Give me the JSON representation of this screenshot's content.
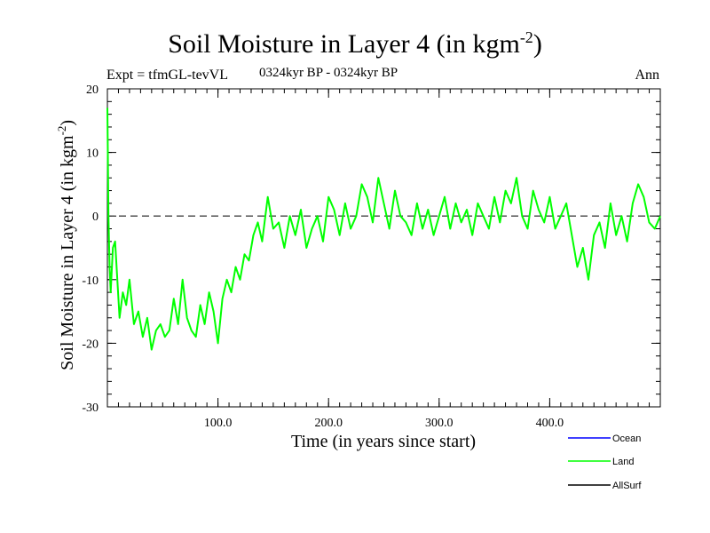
{
  "chart_data": {
    "type": "line",
    "title": "Soil Moisture in Layer 4 (in kgm",
    "title_sup": "-2",
    "title_end": ")",
    "subtitle": "0324kyr BP - 0324kyr BP",
    "expt_label": "Expt = tfmGL-tevVL",
    "season_label": "Ann",
    "xlabel": "Time (in years since start)",
    "ylabel": "Soil Moisture in Layer 4 (in kgm",
    "ylabel_sup": "-2",
    "ylabel_end": ")",
    "xlim": [
      0,
      500
    ],
    "ylim": [
      -30,
      20
    ],
    "x_ticks": [
      100,
      200,
      300,
      400
    ],
    "x_tick_labels": [
      "100.0",
      "200.0",
      "300.0",
      "400.0"
    ],
    "y_ticks": [
      -30,
      -20,
      -10,
      0,
      10,
      20
    ],
    "y_tick_labels": [
      "-30",
      "-20",
      "-10",
      "0",
      "10",
      "20"
    ],
    "zero_line": true,
    "series": [
      {
        "name": "Ocean",
        "color": "#0000ff",
        "values": []
      },
      {
        "name": "Land",
        "color": "#00ff00",
        "x": [
          0,
          1,
          2,
          3,
          5,
          7,
          9,
          11,
          14,
          17,
          20,
          24,
          28,
          32,
          36,
          40,
          44,
          48,
          52,
          56,
          60,
          64,
          68,
          72,
          76,
          80,
          84,
          88,
          92,
          96,
          100,
          104,
          108,
          112,
          116,
          120,
          124,
          128,
          132,
          136,
          140,
          145,
          150,
          155,
          160,
          165,
          170,
          175,
          180,
          185,
          190,
          195,
          200,
          205,
          210,
          215,
          220,
          225,
          230,
          235,
          240,
          245,
          250,
          255,
          260,
          265,
          270,
          275,
          280,
          285,
          290,
          295,
          300,
          305,
          310,
          315,
          320,
          325,
          330,
          335,
          340,
          345,
          350,
          355,
          360,
          365,
          370,
          375,
          380,
          385,
          390,
          395,
          400,
          405,
          410,
          415,
          420,
          425,
          430,
          435,
          440,
          445,
          450,
          455,
          460,
          465,
          470,
          475,
          480,
          485,
          490,
          495,
          500
        ],
        "values": [
          17,
          0,
          -8,
          -12,
          -5,
          -4,
          -10,
          -16,
          -12,
          -14,
          -10,
          -17,
          -15,
          -19,
          -16,
          -21,
          -18,
          -17,
          -19,
          -18,
          -13,
          -17,
          -10,
          -16,
          -18,
          -19,
          -14,
          -17,
          -12,
          -15,
          -20,
          -13,
          -10,
          -12,
          -8,
          -10,
          -6,
          -7,
          -3,
          -1,
          -4,
          3,
          -2,
          -1,
          -5,
          0,
          -3,
          1,
          -5,
          -2,
          0,
          -4,
          3,
          1,
          -3,
          2,
          -2,
          0,
          5,
          3,
          -1,
          6,
          2,
          -2,
          4,
          0,
          -1,
          -3,
          2,
          -2,
          1,
          -3,
          0,
          3,
          -2,
          2,
          -1,
          1,
          -3,
          2,
          0,
          -2,
          3,
          -1,
          4,
          2,
          6,
          0,
          -2,
          4,
          1,
          -1,
          3,
          -2,
          0,
          2,
          -3,
          -8,
          -5,
          -10,
          -3,
          -1,
          -5,
          2,
          -3,
          0,
          -4,
          2,
          5,
          3,
          -1,
          -2,
          0
        ]
      },
      {
        "name": "AllSurf",
        "color": "#000000",
        "values": []
      }
    ],
    "legend_position": "bottom-right",
    "grid": false
  }
}
